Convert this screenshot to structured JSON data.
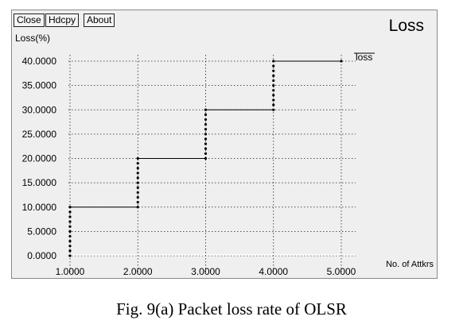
{
  "toolbar": {
    "close_label": "Close",
    "hdcpy_label": "Hdcpy",
    "about_label": "About"
  },
  "window_title": "Loss",
  "caption": "Fig. 9(a) Packet loss rate of OLSR",
  "chart_data": {
    "type": "scatter",
    "title": "Loss",
    "xlabel": "No. of Attkrs",
    "ylabel": "Loss(%)",
    "xlim": [
      1,
      5
    ],
    "ylim": [
      0,
      40
    ],
    "x_ticks": [
      "1.0000",
      "2.0000",
      "3.0000",
      "4.0000",
      "5.0000"
    ],
    "y_ticks": [
      "0.0000",
      "5.0000",
      "10.0000",
      "15.0000",
      "20.0000",
      "25.0000",
      "30.0000",
      "35.0000",
      "40.0000"
    ],
    "grid": true,
    "legend": "top-right",
    "series": [
      {
        "name": "loss",
        "color": "#000000",
        "steps": [
          {
            "x": 1,
            "y": 10
          },
          {
            "x": 2,
            "y": 20
          },
          {
            "x": 3,
            "y": 30
          },
          {
            "x": 4,
            "y": 40
          },
          {
            "x": 5,
            "y": 40
          }
        ],
        "x": [
          1,
          1,
          1,
          1,
          1,
          1,
          1,
          1,
          1,
          1,
          1,
          2,
          2,
          2,
          2,
          2,
          2,
          2,
          2,
          2,
          2,
          2,
          3,
          3,
          3,
          3,
          3,
          3,
          3,
          3,
          3,
          3,
          3,
          4,
          4,
          4,
          4,
          4,
          4,
          4,
          4,
          4,
          4,
          4,
          5
        ],
        "y": [
          0,
          1,
          2,
          3,
          4,
          5,
          6,
          7,
          8,
          9,
          10,
          10,
          11,
          12,
          13,
          14,
          15,
          16,
          17,
          18,
          19,
          20,
          20,
          21,
          22,
          23,
          24,
          25,
          26,
          27,
          28,
          29,
          30,
          30,
          31,
          32,
          33,
          34,
          35,
          36,
          37,
          38,
          39,
          40,
          40
        ]
      }
    ]
  }
}
